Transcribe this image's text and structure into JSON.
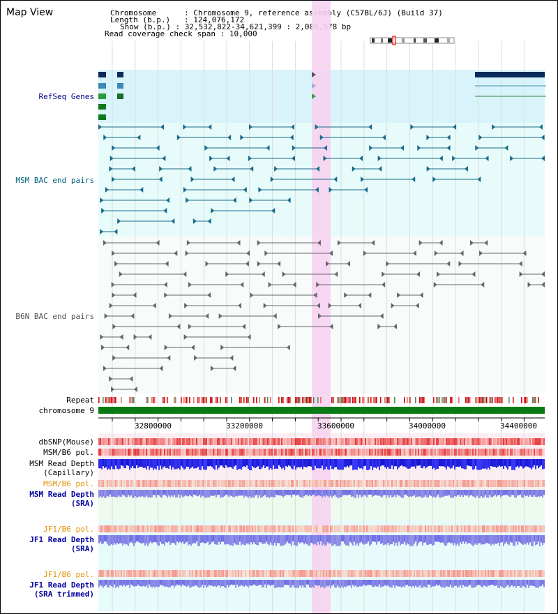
{
  "view_title": "Map View",
  "header": {
    "chromosome_label": "Chromosome",
    "chromosome_value": "Chromosome 9, reference assembly (C57BL/6J) (Build 37)",
    "length_label": "Length (b.p.)",
    "length_value": "124,076,172",
    "show_label": "Show (b.p.)",
    "show_value": "32,532,822-34,621,399 : 2,088,578 bp",
    "coverage_label": "Read coverage check span",
    "coverage_value": "10,000"
  },
  "tracks": {
    "refseq": "RefSeq Genes",
    "msm_bac": "MSM BAC end pairs",
    "b6n_bac": "B6N BAC end pairs",
    "repeat": "Repeat",
    "chromosome": "chromosome 9",
    "dbsnp": "dbSNP(Mouse)",
    "msm_b6_pol_1": "MSM/B6 pol.",
    "msm_depth_cap_1": "MSM Read Depth",
    "msm_depth_cap_2": "(Capillary)",
    "msm_b6_pol_2": "MSM/B6 pol.",
    "msm_depth_sra_1": "MSM Read Depth",
    "msm_depth_sra_2": "(SRA)",
    "jf1_b6_pol_1": "JF1/B6 pol.",
    "jf1_depth_1": "JF1 Read Depth",
    "jf1_depth_2": "(SRA)",
    "jf1_b6_pol_2": "JF1/B6 pol.",
    "jf1_trim_1": "JF1 Read Depth",
    "jf1_trim_2": "(SRA trimmed)"
  },
  "axis": {
    "ticks": [
      "32800000",
      "33200000",
      "33600000",
      "34000000",
      "34400000"
    ]
  },
  "colors": {
    "refseq_label": "#000080",
    "msm_label": "#006080",
    "b6n_label": "#505050",
    "pol_label": "#e69000",
    "depth_label": "#0000a0",
    "highlight": "#f6d3f0",
    "chromosome_bar": "#0a7a14"
  }
}
